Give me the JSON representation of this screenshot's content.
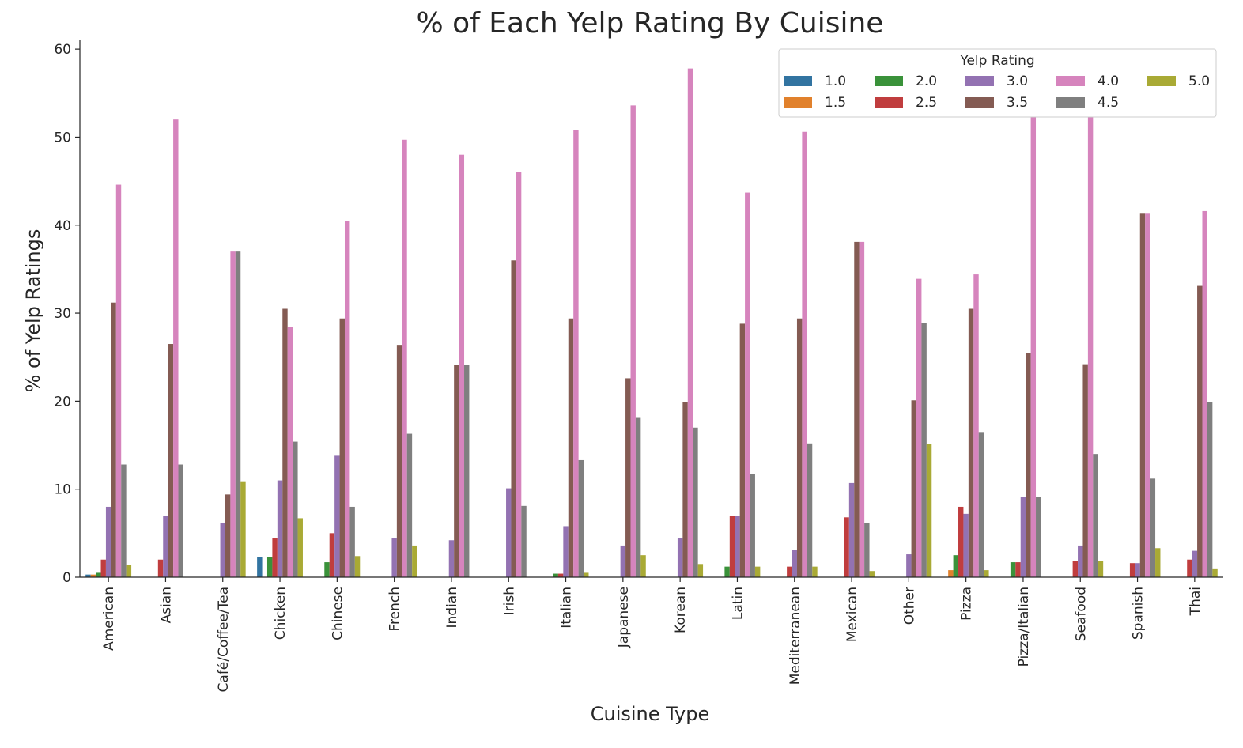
{
  "chart_data": {
    "type": "bar",
    "title": "% of Each Yelp Rating By Cuisine",
    "xlabel": "Cuisine Type",
    "ylabel": "% of Yelp Ratings",
    "ylim": [
      0,
      61
    ],
    "yticks": [
      "0",
      "10",
      "20",
      "30",
      "40",
      "50",
      "60"
    ],
    "grid": false,
    "legend_title": "Yelp Rating",
    "legend_placement": "top-right",
    "categories": [
      "American",
      "Asian",
      "Café/Coffee/Tea",
      "Chicken",
      "Chinese",
      "French",
      "Indian",
      "Irish",
      "Italian",
      "Japanese",
      "Korean",
      "Latin",
      "Mediterranean",
      "Mexican",
      "Other",
      "Pizza",
      "Pizza/Italian",
      "Seafood",
      "Spanish",
      "Thai"
    ],
    "series": [
      {
        "name": "1.0",
        "color": "#3274a1",
        "values": [
          0.3,
          0,
          0,
          2.3,
          0,
          0,
          0,
          0,
          0,
          0,
          0,
          0,
          0,
          0,
          0,
          0,
          0,
          0,
          0,
          0
        ]
      },
      {
        "name": "1.5",
        "color": "#e1812c",
        "values": [
          0.3,
          0,
          0,
          0,
          0,
          0,
          0,
          0,
          0,
          0,
          0,
          0,
          0,
          0,
          0,
          0.8,
          0,
          0,
          0,
          0
        ]
      },
      {
        "name": "2.0",
        "color": "#3a923a",
        "values": [
          0.5,
          0,
          0,
          2.3,
          1.7,
          0,
          0,
          0,
          0.4,
          0,
          0,
          1.2,
          0,
          0,
          0,
          2.5,
          1.7,
          0,
          0,
          0
        ]
      },
      {
        "name": "2.5",
        "color": "#c03d3e",
        "values": [
          2.0,
          2.0,
          0,
          4.4,
          5.0,
          0,
          0,
          0,
          0.4,
          0,
          0,
          7.0,
          1.2,
          6.8,
          0,
          8.0,
          1.7,
          1.8,
          1.6,
          2.0
        ]
      },
      {
        "name": "3.0",
        "color": "#9372b2",
        "values": [
          8.0,
          7.0,
          6.2,
          11.0,
          13.8,
          4.4,
          4.2,
          10.1,
          5.8,
          3.6,
          4.4,
          7.0,
          3.1,
          10.7,
          2.6,
          7.2,
          9.1,
          3.6,
          1.6,
          3.0
        ]
      },
      {
        "name": "3.5",
        "color": "#845b53",
        "values": [
          31.2,
          26.5,
          9.4,
          30.5,
          29.4,
          26.4,
          24.1,
          36.0,
          29.4,
          22.6,
          19.9,
          28.8,
          29.4,
          38.1,
          20.1,
          30.5,
          25.5,
          24.2,
          41.3,
          33.1
        ]
      },
      {
        "name": "4.0",
        "color": "#d684bd",
        "values": [
          44.6,
          52.0,
          37.0,
          28.4,
          40.5,
          49.7,
          48.0,
          46.0,
          50.8,
          53.6,
          57.8,
          43.7,
          50.6,
          38.1,
          33.9,
          34.4,
          53.7,
          55.2,
          41.3,
          41.6
        ]
      },
      {
        "name": "4.5",
        "color": "#7f7f7f",
        "values": [
          12.8,
          12.8,
          37.0,
          15.4,
          8.0,
          16.3,
          24.1,
          8.1,
          13.3,
          18.1,
          17.0,
          11.7,
          15.2,
          6.2,
          28.9,
          16.5,
          9.1,
          14.0,
          11.2,
          19.9
        ]
      },
      {
        "name": "5.0",
        "color": "#a9aa35",
        "values": [
          1.4,
          0,
          10.9,
          6.7,
          2.4,
          3.6,
          0,
          0,
          0.5,
          2.5,
          1.5,
          1.2,
          1.2,
          0.7,
          15.1,
          0.8,
          0,
          1.8,
          3.3,
          1.0
        ]
      }
    ]
  }
}
